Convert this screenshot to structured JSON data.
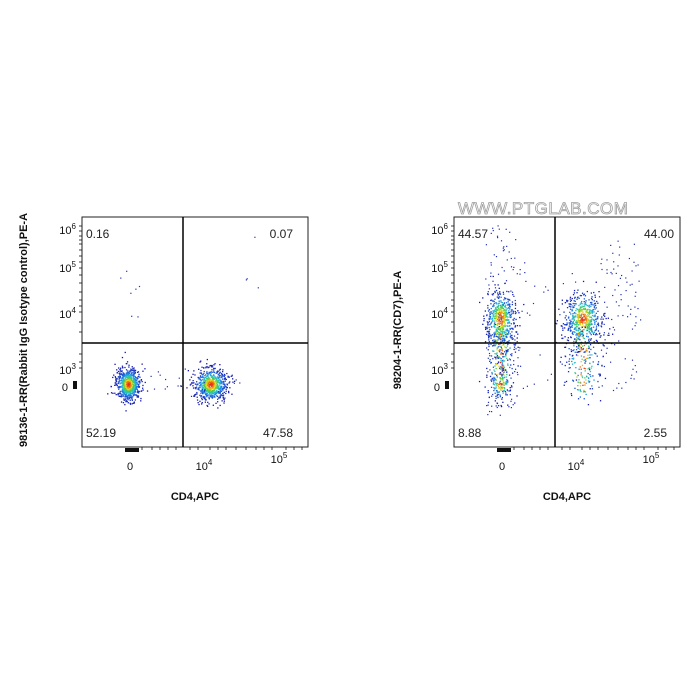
{
  "watermark": "WWW.PTGLAB.COM",
  "chart_data": [
    {
      "type": "scatter",
      "panel": "left",
      "xlabel": "CD4,APC",
      "ylabel": "98136-1-RR(Rabbit IgG Isotype control),PE-A",
      "x_ticks": [
        {
          "value": "0",
          "label": "0"
        },
        {
          "value": "1e4",
          "base": "10",
          "exp": "4"
        },
        {
          "value": "1e5",
          "base": "10",
          "exp": "5"
        }
      ],
      "y_ticks": [
        {
          "value": "0",
          "label": "0"
        },
        {
          "value": "1e3",
          "base": "10",
          "exp": "3"
        },
        {
          "value": "1e4",
          "base": "10",
          "exp": "4"
        },
        {
          "value": "1e5",
          "base": "10",
          "exp": "5"
        },
        {
          "value": "1e6",
          "base": "10",
          "exp": "6"
        }
      ],
      "x_scale": "biexponential",
      "y_scale": "biexponential",
      "quadrants": {
        "UL": "0.16",
        "UR": "0.07",
        "LL": "52.19",
        "LR": "47.58"
      },
      "populations": [
        {
          "name": "CD4-",
          "x_center": 0,
          "y_center": 0,
          "percent": 52.19
        },
        {
          "name": "CD4+",
          "x_center": 50000,
          "y_center": 0,
          "percent": 47.58
        }
      ]
    },
    {
      "type": "scatter",
      "panel": "right",
      "xlabel": "CD4,APC",
      "ylabel": "98204-1-RR(CD7),PE-A",
      "x_ticks": [
        {
          "value": "0",
          "label": "0"
        },
        {
          "value": "1e4",
          "base": "10",
          "exp": "4"
        },
        {
          "value": "1e5",
          "base": "10",
          "exp": "5"
        }
      ],
      "y_ticks": [
        {
          "value": "0",
          "label": "0"
        },
        {
          "value": "1e3",
          "base": "10",
          "exp": "3"
        },
        {
          "value": "1e4",
          "base": "10",
          "exp": "4"
        },
        {
          "value": "1e5",
          "base": "10",
          "exp": "5"
        },
        {
          "value": "1e6",
          "base": "10",
          "exp": "6"
        }
      ],
      "x_scale": "biexponential",
      "y_scale": "biexponential",
      "quadrants": {
        "UL": "44.57",
        "UR": "44.00",
        "LL": "8.88",
        "LR": "2.55"
      },
      "populations": [
        {
          "name": "CD4- CD7+",
          "x_center": 0,
          "y_center": 60000,
          "percent": 44.57
        },
        {
          "name": "CD4+ CD7+",
          "x_center": 50000,
          "y_center": 60000,
          "percent": 44.0
        },
        {
          "name": "CD4- CD7-",
          "x_center": 0,
          "y_center": 0,
          "percent": 8.88
        },
        {
          "name": "CD4+ CD7-",
          "x_center": 50000,
          "y_center": 0,
          "percent": 2.55
        }
      ]
    }
  ]
}
